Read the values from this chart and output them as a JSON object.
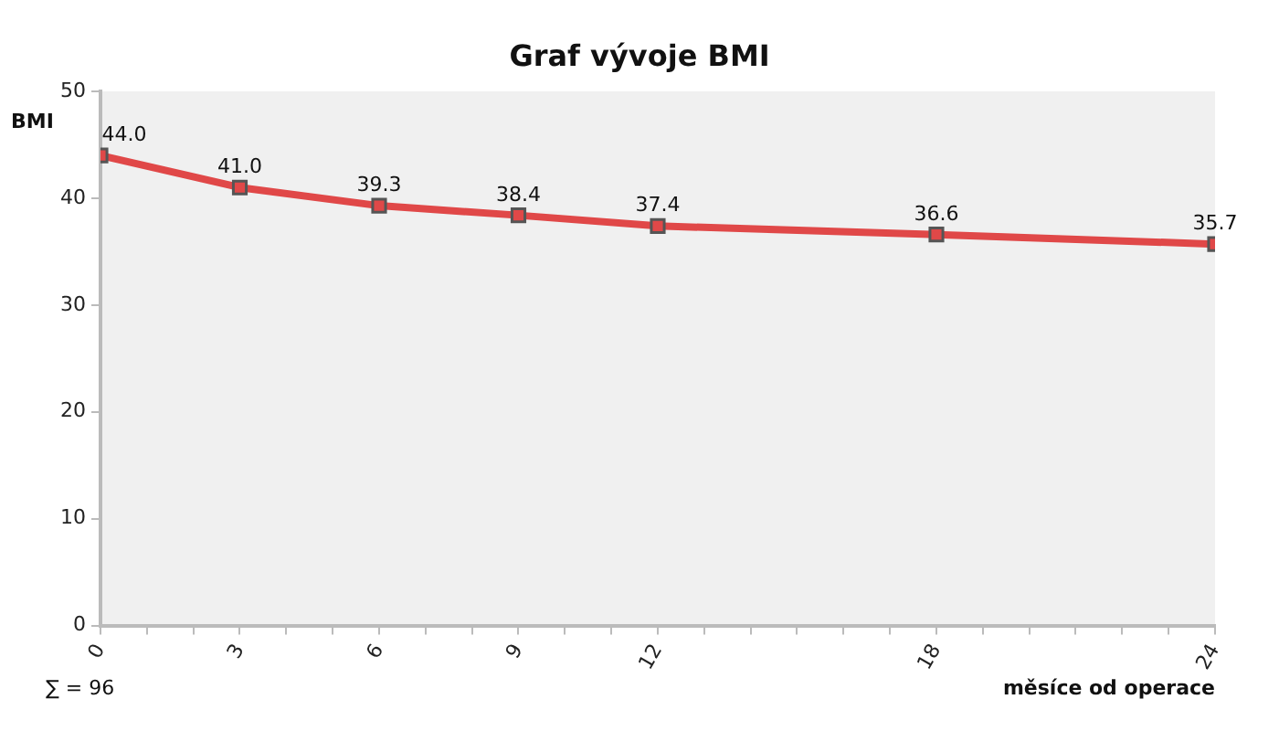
{
  "chart_data": {
    "type": "line",
    "title": "Graf vývoje BMI",
    "xlabel": "měsíce od operace",
    "ylabel": "BMI",
    "annotations": [
      "∑ = 96"
    ],
    "x": [
      0,
      3,
      6,
      9,
      12,
      18,
      24
    ],
    "series": [
      {
        "color": "#e04848",
        "values": [
          44.0,
          41.0,
          39.3,
          38.4,
          37.4,
          36.6,
          35.7
        ],
        "value_labels": [
          "44.0",
          "41.0",
          "39.3",
          "38.4",
          "37.4",
          "36.6",
          "35.7"
        ]
      }
    ],
    "xlim": [
      0,
      24
    ],
    "xticks": [
      0,
      {
        "value": 1,
        "label": null
      },
      {
        "value": 2,
        "label": null
      },
      3,
      {
        "value": 4,
        "label": null
      },
      {
        "value": 5,
        "label": null
      },
      6,
      {
        "value": 7,
        "label": null
      },
      {
        "value": 8,
        "label": null
      },
      9,
      {
        "value": 10,
        "label": null
      },
      {
        "value": 11,
        "label": null
      },
      12,
      {
        "value": 13,
        "label": null
      },
      {
        "value": 14,
        "label": null
      },
      {
        "value": 15,
        "label": null
      },
      {
        "value": 16,
        "label": null
      },
      {
        "value": 17,
        "label": null
      },
      18,
      {
        "value": 19,
        "label": null
      },
      {
        "value": 20,
        "label": null
      },
      {
        "value": 21,
        "label": null
      },
      {
        "value": 22,
        "label": null
      },
      {
        "value": 23,
        "label": null
      },
      24
    ],
    "ylim": [
      0,
      50
    ],
    "yticks": [
      0,
      10,
      20,
      30,
      40,
      50
    ],
    "grid": false,
    "legend": false,
    "marker": "square",
    "line_style": "solid"
  }
}
